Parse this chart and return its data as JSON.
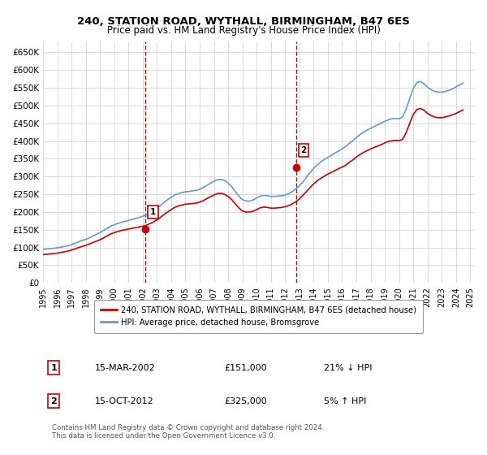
{
  "title": "240, STATION ROAD, WYTHALL, BIRMINGHAM, B47 6ES",
  "subtitle": "Price paid vs. HM Land Registry's House Price Index (HPI)",
  "xlabel": "",
  "ylabel": "",
  "ylim": [
    0,
    680000
  ],
  "yticks": [
    0,
    50000,
    100000,
    150000,
    200000,
    250000,
    300000,
    350000,
    400000,
    450000,
    500000,
    550000,
    600000,
    650000
  ],
  "ytick_labels": [
    "£0",
    "£50K",
    "£100K",
    "£150K",
    "£200K",
    "£250K",
    "£300K",
    "£350K",
    "£400K",
    "£450K",
    "£500K",
    "£550K",
    "£600K",
    "£650K"
  ],
  "x_start": 1995,
  "x_end": 2025,
  "xticks": [
    1995,
    1996,
    1997,
    1998,
    1999,
    2000,
    2001,
    2002,
    2003,
    2004,
    2005,
    2006,
    2007,
    2008,
    2009,
    2010,
    2011,
    2012,
    2013,
    2014,
    2015,
    2016,
    2017,
    2018,
    2019,
    2020,
    2021,
    2022,
    2023,
    2024,
    2025
  ],
  "sale1_x": 2002.21,
  "sale1_y": 151000,
  "sale1_label": "1",
  "sale2_x": 2012.79,
  "sale2_y": 325000,
  "sale2_label": "2",
  "vline1_x": 2002.21,
  "vline2_x": 2012.79,
  "vline_color": "#cc0000",
  "vline_style": "dashed",
  "hpi_color": "#6699cc",
  "price_color": "#cc0000",
  "background_color": "#ffffff",
  "grid_color": "#cccccc",
  "legend_entry1": "240, STATION ROAD, WYTHALL, BIRMINGHAM, B47 6ES (detached house)",
  "legend_entry2": "HPI: Average price, detached house, Bromsgrove",
  "annotation1_date": "15-MAR-2002",
  "annotation1_price": "£151,000",
  "annotation1_hpi": "21% ↓ HPI",
  "annotation2_date": "15-OCT-2012",
  "annotation2_price": "£325,000",
  "annotation2_hpi": "5% ↑ HPI",
  "footer": "Contains HM Land Registry data © Crown copyright and database right 2024.\nThis data is licensed under the Open Government Licence v3.0.",
  "hpi_data_x": [
    1995.0,
    1995.25,
    1995.5,
    1995.75,
    1996.0,
    1996.25,
    1996.5,
    1996.75,
    1997.0,
    1997.25,
    1997.5,
    1997.75,
    1998.0,
    1998.25,
    1998.5,
    1998.75,
    1999.0,
    1999.25,
    1999.5,
    1999.75,
    2000.0,
    2000.25,
    2000.5,
    2000.75,
    2001.0,
    2001.25,
    2001.5,
    2001.75,
    2002.0,
    2002.25,
    2002.5,
    2002.75,
    2003.0,
    2003.25,
    2003.5,
    2003.75,
    2004.0,
    2004.25,
    2004.5,
    2004.75,
    2005.0,
    2005.25,
    2005.5,
    2005.75,
    2006.0,
    2006.25,
    2006.5,
    2006.75,
    2007.0,
    2007.25,
    2007.5,
    2007.75,
    2008.0,
    2008.25,
    2008.5,
    2008.75,
    2009.0,
    2009.25,
    2009.5,
    2009.75,
    2010.0,
    2010.25,
    2010.5,
    2010.75,
    2011.0,
    2011.25,
    2011.5,
    2011.75,
    2012.0,
    2012.25,
    2012.5,
    2012.75,
    2013.0,
    2013.25,
    2013.5,
    2013.75,
    2014.0,
    2014.25,
    2014.5,
    2014.75,
    2015.0,
    2015.25,
    2015.5,
    2015.75,
    2016.0,
    2016.25,
    2016.5,
    2016.75,
    2017.0,
    2017.25,
    2017.5,
    2017.75,
    2018.0,
    2018.25,
    2018.5,
    2018.75,
    2019.0,
    2019.25,
    2019.5,
    2019.75,
    2020.0,
    2020.25,
    2020.5,
    2020.75,
    2021.0,
    2021.25,
    2021.5,
    2021.75,
    2022.0,
    2022.25,
    2022.5,
    2022.75,
    2023.0,
    2023.25,
    2023.5,
    2023.75,
    2024.0,
    2024.25,
    2024.5
  ],
  "hpi_data_y": [
    95000,
    96000,
    97000,
    98000,
    99000,
    101000,
    103000,
    105000,
    108000,
    112000,
    116000,
    120000,
    123000,
    127000,
    132000,
    137000,
    142000,
    148000,
    154000,
    160000,
    164000,
    168000,
    171000,
    174000,
    176000,
    179000,
    182000,
    185000,
    188000,
    192000,
    197000,
    203000,
    210000,
    218000,
    227000,
    235000,
    242000,
    248000,
    252000,
    255000,
    257000,
    258000,
    260000,
    261000,
    264000,
    269000,
    275000,
    281000,
    287000,
    291000,
    292000,
    289000,
    282000,
    272000,
    258000,
    245000,
    235000,
    231000,
    231000,
    234000,
    240000,
    245000,
    247000,
    246000,
    244000,
    244000,
    245000,
    246000,
    248000,
    252000,
    258000,
    265000,
    274000,
    285000,
    298000,
    311000,
    323000,
    333000,
    341000,
    348000,
    354000,
    360000,
    366000,
    372000,
    378000,
    385000,
    393000,
    401000,
    410000,
    418000,
    425000,
    431000,
    436000,
    441000,
    446000,
    451000,
    456000,
    460000,
    463000,
    464000,
    463000,
    468000,
    490000,
    520000,
    548000,
    565000,
    568000,
    562000,
    552000,
    545000,
    540000,
    538000,
    538000,
    540000,
    543000,
    547000,
    553000,
    558000,
    563000
  ],
  "price_data_x": [
    1995.0,
    1995.25,
    1995.5,
    1995.75,
    1996.0,
    1996.25,
    1996.5,
    1996.75,
    1997.0,
    1997.25,
    1997.5,
    1997.75,
    1998.0,
    1998.25,
    1998.5,
    1998.75,
    1999.0,
    1999.25,
    1999.5,
    1999.75,
    2000.0,
    2000.25,
    2000.5,
    2000.75,
    2001.0,
    2001.25,
    2001.5,
    2001.75,
    2002.0,
    2002.25,
    2002.5,
    2002.75,
    2003.0,
    2003.25,
    2003.5,
    2003.75,
    2004.0,
    2004.25,
    2004.5,
    2004.75,
    2005.0,
    2005.25,
    2005.5,
    2005.75,
    2006.0,
    2006.25,
    2006.5,
    2006.75,
    2007.0,
    2007.25,
    2007.5,
    2007.75,
    2008.0,
    2008.25,
    2008.5,
    2008.75,
    2009.0,
    2009.25,
    2009.5,
    2009.75,
    2010.0,
    2010.25,
    2010.5,
    2010.75,
    2011.0,
    2011.25,
    2011.5,
    2011.75,
    2012.0,
    2012.25,
    2012.5,
    2012.75,
    2013.0,
    2013.25,
    2013.5,
    2013.75,
    2014.0,
    2014.25,
    2014.5,
    2014.75,
    2015.0,
    2015.25,
    2015.5,
    2015.75,
    2016.0,
    2016.25,
    2016.5,
    2016.75,
    2017.0,
    2017.25,
    2017.5,
    2017.75,
    2018.0,
    2018.25,
    2018.5,
    2018.75,
    2019.0,
    2019.25,
    2019.5,
    2019.75,
    2020.0,
    2020.25,
    2020.5,
    2020.75,
    2021.0,
    2021.25,
    2021.5,
    2021.75,
    2022.0,
    2022.25,
    2022.5,
    2022.75,
    2023.0,
    2023.25,
    2023.5,
    2023.75,
    2024.0,
    2024.25,
    2024.5
  ],
  "price_data_y": [
    80000,
    81000,
    82000,
    83000,
    84000,
    86000,
    88000,
    90000,
    93000,
    96000,
    100000,
    103000,
    106000,
    110000,
    114000,
    118000,
    122000,
    127000,
    133000,
    138000,
    142000,
    145000,
    148000,
    150000,
    152000,
    154000,
    156000,
    158000,
    160000,
    163000,
    167000,
    172000,
    178000,
    185000,
    193000,
    200000,
    207000,
    213000,
    217000,
    220000,
    222000,
    223000,
    224000,
    225000,
    228000,
    232000,
    238000,
    243000,
    248000,
    252000,
    253000,
    250000,
    244000,
    235000,
    223000,
    212000,
    203000,
    200000,
    200000,
    202000,
    207000,
    212000,
    214000,
    213000,
    211000,
    211000,
    212000,
    213000,
    215000,
    218000,
    223000,
    229000,
    237000,
    247000,
    258000,
    269000,
    279000,
    288000,
    295000,
    301000,
    307000,
    312000,
    317000,
    322000,
    327000,
    332000,
    340000,
    347000,
    355000,
    362000,
    368000,
    373000,
    378000,
    382000,
    386000,
    390000,
    395000,
    399000,
    401000,
    402000,
    401000,
    405000,
    424000,
    450000,
    475000,
    489000,
    492000,
    487000,
    478000,
    472000,
    468000,
    466000,
    466000,
    468000,
    471000,
    474000,
    478000,
    483000,
    488000
  ]
}
